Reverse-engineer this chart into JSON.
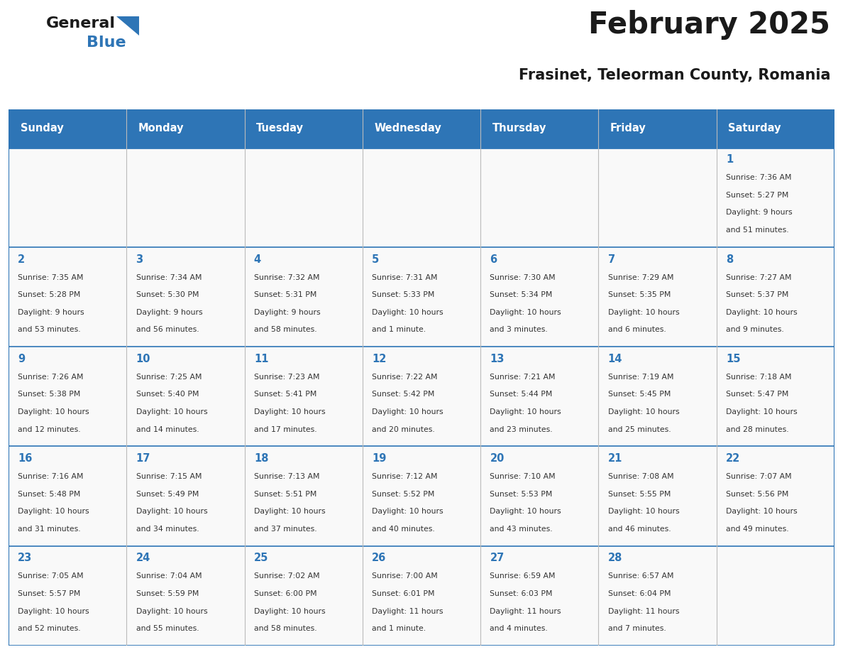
{
  "title": "February 2025",
  "subtitle": "Frasinet, Teleorman County, Romania",
  "header_bg": "#2E75B6",
  "header_text": "#FFFFFF",
  "cell_bg": "#F9F9F9",
  "border_color": "#2E75B6",
  "grid_line_color": "#BBBBBB",
  "day_number_color": "#2E75B6",
  "info_color": "#333333",
  "title_color": "#1a1a1a",
  "subtitle_color": "#1a1a1a",
  "logo_general_color": "#1a1a1a",
  "logo_blue_color": "#2E75B6",
  "day_headers": [
    "Sunday",
    "Monday",
    "Tuesday",
    "Wednesday",
    "Thursday",
    "Friday",
    "Saturday"
  ],
  "days_data": [
    {
      "day": 1,
      "col": 6,
      "row": 0,
      "sunrise": "7:36 AM",
      "sunset": "5:27 PM",
      "daylight": "9 hours and 51 minutes."
    },
    {
      "day": 2,
      "col": 0,
      "row": 1,
      "sunrise": "7:35 AM",
      "sunset": "5:28 PM",
      "daylight": "9 hours and 53 minutes."
    },
    {
      "day": 3,
      "col": 1,
      "row": 1,
      "sunrise": "7:34 AM",
      "sunset": "5:30 PM",
      "daylight": "9 hours and 56 minutes."
    },
    {
      "day": 4,
      "col": 2,
      "row": 1,
      "sunrise": "7:32 AM",
      "sunset": "5:31 PM",
      "daylight": "9 hours and 58 minutes."
    },
    {
      "day": 5,
      "col": 3,
      "row": 1,
      "sunrise": "7:31 AM",
      "sunset": "5:33 PM",
      "daylight": "10 hours and 1 minute."
    },
    {
      "day": 6,
      "col": 4,
      "row": 1,
      "sunrise": "7:30 AM",
      "sunset": "5:34 PM",
      "daylight": "10 hours and 3 minutes."
    },
    {
      "day": 7,
      "col": 5,
      "row": 1,
      "sunrise": "7:29 AM",
      "sunset": "5:35 PM",
      "daylight": "10 hours and 6 minutes."
    },
    {
      "day": 8,
      "col": 6,
      "row": 1,
      "sunrise": "7:27 AM",
      "sunset": "5:37 PM",
      "daylight": "10 hours and 9 minutes."
    },
    {
      "day": 9,
      "col": 0,
      "row": 2,
      "sunrise": "7:26 AM",
      "sunset": "5:38 PM",
      "daylight": "10 hours and 12 minutes."
    },
    {
      "day": 10,
      "col": 1,
      "row": 2,
      "sunrise": "7:25 AM",
      "sunset": "5:40 PM",
      "daylight": "10 hours and 14 minutes."
    },
    {
      "day": 11,
      "col": 2,
      "row": 2,
      "sunrise": "7:23 AM",
      "sunset": "5:41 PM",
      "daylight": "10 hours and 17 minutes."
    },
    {
      "day": 12,
      "col": 3,
      "row": 2,
      "sunrise": "7:22 AM",
      "sunset": "5:42 PM",
      "daylight": "10 hours and 20 minutes."
    },
    {
      "day": 13,
      "col": 4,
      "row": 2,
      "sunrise": "7:21 AM",
      "sunset": "5:44 PM",
      "daylight": "10 hours and 23 minutes."
    },
    {
      "day": 14,
      "col": 5,
      "row": 2,
      "sunrise": "7:19 AM",
      "sunset": "5:45 PM",
      "daylight": "10 hours and 25 minutes."
    },
    {
      "day": 15,
      "col": 6,
      "row": 2,
      "sunrise": "7:18 AM",
      "sunset": "5:47 PM",
      "daylight": "10 hours and 28 minutes."
    },
    {
      "day": 16,
      "col": 0,
      "row": 3,
      "sunrise": "7:16 AM",
      "sunset": "5:48 PM",
      "daylight": "10 hours and 31 minutes."
    },
    {
      "day": 17,
      "col": 1,
      "row": 3,
      "sunrise": "7:15 AM",
      "sunset": "5:49 PM",
      "daylight": "10 hours and 34 minutes."
    },
    {
      "day": 18,
      "col": 2,
      "row": 3,
      "sunrise": "7:13 AM",
      "sunset": "5:51 PM",
      "daylight": "10 hours and 37 minutes."
    },
    {
      "day": 19,
      "col": 3,
      "row": 3,
      "sunrise": "7:12 AM",
      "sunset": "5:52 PM",
      "daylight": "10 hours and 40 minutes."
    },
    {
      "day": 20,
      "col": 4,
      "row": 3,
      "sunrise": "7:10 AM",
      "sunset": "5:53 PM",
      "daylight": "10 hours and 43 minutes."
    },
    {
      "day": 21,
      "col": 5,
      "row": 3,
      "sunrise": "7:08 AM",
      "sunset": "5:55 PM",
      "daylight": "10 hours and 46 minutes."
    },
    {
      "day": 22,
      "col": 6,
      "row": 3,
      "sunrise": "7:07 AM",
      "sunset": "5:56 PM",
      "daylight": "10 hours and 49 minutes."
    },
    {
      "day": 23,
      "col": 0,
      "row": 4,
      "sunrise": "7:05 AM",
      "sunset": "5:57 PM",
      "daylight": "10 hours and 52 minutes."
    },
    {
      "day": 24,
      "col": 1,
      "row": 4,
      "sunrise": "7:04 AM",
      "sunset": "5:59 PM",
      "daylight": "10 hours and 55 minutes."
    },
    {
      "day": 25,
      "col": 2,
      "row": 4,
      "sunrise": "7:02 AM",
      "sunset": "6:00 PM",
      "daylight": "10 hours and 58 minutes."
    },
    {
      "day": 26,
      "col": 3,
      "row": 4,
      "sunrise": "7:00 AM",
      "sunset": "6:01 PM",
      "daylight": "11 hours and 1 minute."
    },
    {
      "day": 27,
      "col": 4,
      "row": 4,
      "sunrise": "6:59 AM",
      "sunset": "6:03 PM",
      "daylight": "11 hours and 4 minutes."
    },
    {
      "day": 28,
      "col": 5,
      "row": 4,
      "sunrise": "6:57 AM",
      "sunset": "6:04 PM",
      "daylight": "11 hours and 7 minutes."
    }
  ]
}
